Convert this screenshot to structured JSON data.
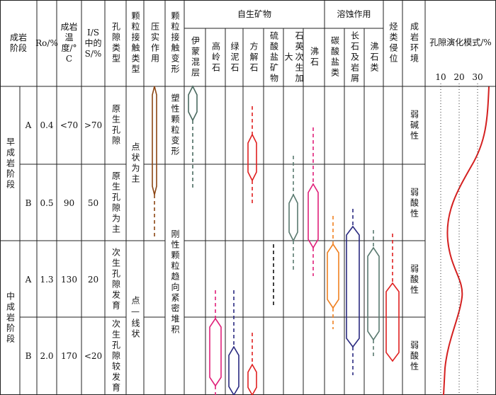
{
  "headers": [
    "成岩阶段",
    "Ro/%",
    "成岩温度/°C",
    "I/S中的S/%",
    "孔隙类型",
    "颗粒接触类型",
    "压实作用",
    "颗粒接触变形",
    "自生矿物",
    "伊蒙混层",
    "高岭石",
    "绿泥石",
    "方解石",
    "硫酸盐矿物",
    "石英次生加大",
    "沸石",
    "溶蚀作用",
    "碳酸盐类",
    "长石及岩屑",
    "沸石类",
    "烃类侵位",
    "成岩环境",
    "孔隙演化模式/%"
  ],
  "stages": [
    {
      "name": "早成岩阶段",
      "substages": [
        {
          "label": "A",
          "ro": "0.4",
          "temperature": "<70",
          "smectite": ">70",
          "pore_type": "原生孔隙",
          "environment": "弱碱性"
        },
        {
          "label": "B",
          "ro": "0.5",
          "temperature": "90",
          "smectite": "50",
          "pore_type": "原生孔隙为主",
          "environment": "弱酸性"
        }
      ]
    },
    {
      "name": "中成岩阶段",
      "substages": [
        {
          "label": "A",
          "ro": "1.3",
          "temperature": "130",
          "smectite": "20",
          "pore_type": "次生孔隙发育",
          "environment": "弱酸性"
        },
        {
          "label": "B",
          "ro": "2.0",
          "temperature": "170",
          "smectite": "<20",
          "pore_type": "次生孔隙较发育",
          "environment": "弱酸性"
        }
      ]
    }
  ],
  "contact_types": [
    "点状为主",
    "点—线状"
  ],
  "deformation": [
    "塑性颗粒变形",
    "刚性颗粒趋向紧密堆积"
  ],
  "porosity_ticks": [
    "10",
    "20",
    "30"
  ]
}
